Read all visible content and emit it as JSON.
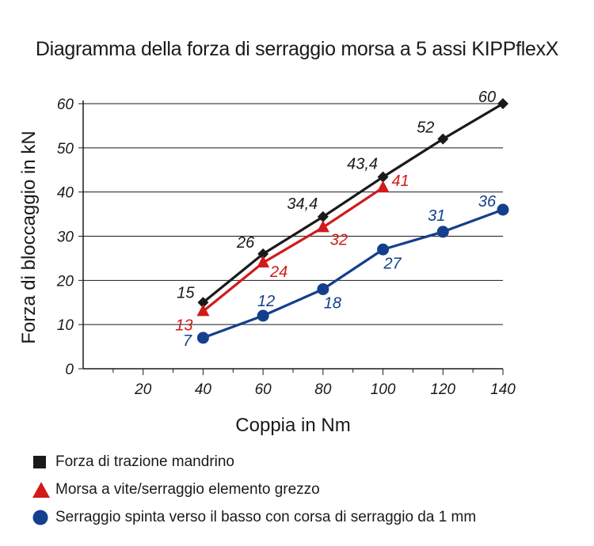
{
  "chart_data": {
    "type": "line",
    "title": "Diagramma della forza di serraggio morsa a 5 assi KIPPflexX",
    "xlabel": "Coppia in Nm",
    "ylabel": "Forza di bloccaggio in kN",
    "xlim": [
      0,
      140
    ],
    "ylim": [
      0,
      60
    ],
    "x_ticks": [
      20,
      40,
      60,
      80,
      100,
      120,
      140
    ],
    "x_tick_labels": [
      "20",
      "40",
      "60",
      "80",
      "100",
      "120",
      "140"
    ],
    "y_ticks": [
      0,
      10,
      20,
      30,
      40,
      50,
      60
    ],
    "y_tick_labels": [
      "0",
      "10",
      "20",
      "30",
      "40",
      "50",
      "60"
    ],
    "grid": "horizontal",
    "legend_position": "bottom",
    "series": [
      {
        "name": "Forza di trazione mandrino",
        "color": "#1a1a1a",
        "marker": "diamond",
        "legend_marker": "square",
        "x": [
          40,
          60,
          80,
          100,
          120,
          140
        ],
        "y": [
          15,
          26,
          34.4,
          43.4,
          52,
          60
        ],
        "labels": [
          "15",
          "26",
          "34,4",
          "43,4",
          "52",
          "60"
        ],
        "label_position": "above-left"
      },
      {
        "name": "Morsa a vite/serraggio elemento grezzo",
        "color": "#d11a1a",
        "marker": "triangle",
        "legend_marker": "triangle",
        "x": [
          40,
          60,
          80,
          100
        ],
        "y": [
          13,
          24,
          32,
          41
        ],
        "labels": [
          "13",
          "24",
          "32",
          "41"
        ],
        "label_position": "mixed"
      },
      {
        "name": "Serraggio spinta verso il basso con corsa di serraggio da 1 mm",
        "color": "#143f8c",
        "marker": "circle",
        "legend_marker": "circle",
        "x": [
          40,
          60,
          80,
          100,
          120,
          140
        ],
        "y": [
          7,
          12,
          18,
          27,
          31,
          36
        ],
        "labels": [
          "7",
          "12",
          "18",
          "27",
          "31",
          "36"
        ],
        "label_position": "mixed"
      }
    ]
  }
}
